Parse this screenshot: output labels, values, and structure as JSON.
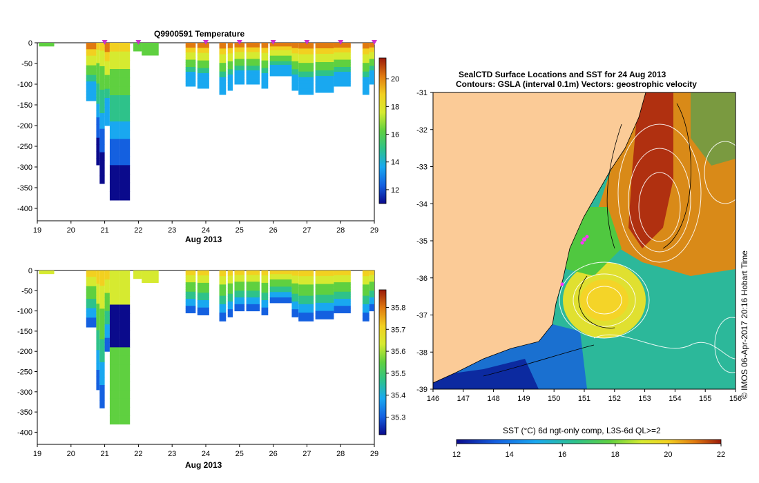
{
  "chart_data": [
    {
      "type": "heatmap",
      "title": "Q9900591  Temperature",
      "xlabel": "Aug 2013",
      "x_ticks": [
        "19",
        "20",
        "21",
        "22",
        "23",
        "24",
        "25",
        "26",
        "27",
        "28",
        "29"
      ],
      "xlim": [
        19,
        29
      ],
      "y_ticks": [
        "0",
        "-50",
        "-100",
        "-150",
        "-200",
        "-250",
        "-300",
        "-350",
        "-400"
      ],
      "ylim": [
        -430,
        0
      ],
      "colorbar_ticks": [
        "20",
        "18",
        "16",
        "14",
        "12"
      ],
      "colorbar_range": [
        11,
        21.5
      ],
      "marker_days": [
        21,
        22,
        24,
        25,
        26,
        27,
        28,
        29
      ]
    },
    {
      "type": "heatmap",
      "title": "",
      "xlabel": "Aug 2013",
      "x_ticks": [
        "19",
        "20",
        "21",
        "22",
        "23",
        "24",
        "25",
        "26",
        "27",
        "28",
        "29"
      ],
      "xlim": [
        19,
        29
      ],
      "y_ticks": [
        "0",
        "-50",
        "-100",
        "-150",
        "-200",
        "-250",
        "-300",
        "-350",
        "-400"
      ],
      "ylim": [
        -430,
        0
      ],
      "colorbar_ticks": [
        "35.8",
        "35.7",
        "35.6",
        "35.5",
        "35.4",
        "35.3"
      ],
      "colorbar_range": [
        35.22,
        35.88
      ]
    },
    {
      "type": "heatmap",
      "title_line1": "SealCTD Surface Locations and SST for 24 Aug 2013",
      "title_line2": "Contours: GSLA (interval 0.1m) Vectors: geostrophic velocity",
      "x_ticks": [
        "146",
        "147",
        "148",
        "149",
        "150",
        "151",
        "152",
        "153",
        "154",
        "155",
        "156"
      ],
      "xlim": [
        146,
        156
      ],
      "y_ticks": [
        "-31",
        "-32",
        "-33",
        "-34",
        "-35",
        "-36",
        "-37",
        "-38",
        "-39"
      ],
      "ylim": [
        -39,
        -31
      ],
      "colorbar_label": "SST (°C) 6d ngt-only comp, L3S-6d QL>=2",
      "colorbar_ticks": [
        "12",
        "14",
        "16",
        "18",
        "20",
        "22"
      ],
      "colorbar_range": [
        12,
        22
      ],
      "side_label": "© IMOS 06-Apr-2017 20:16 Hobart Time"
    }
  ]
}
